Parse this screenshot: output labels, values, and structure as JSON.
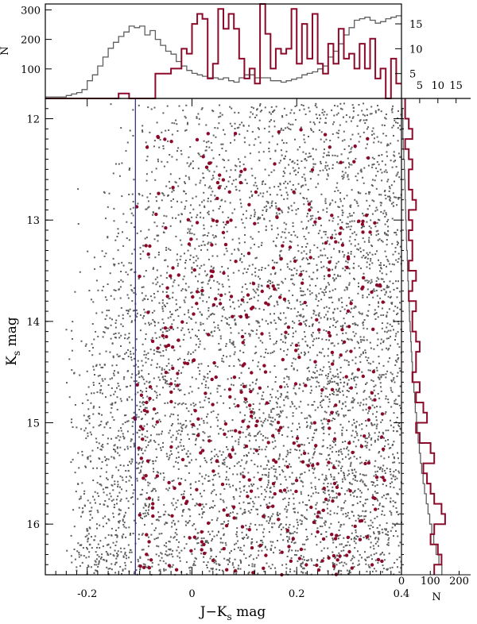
{
  "figure": {
    "colors": {
      "field": "#5e5e5e",
      "cluster": "#8b0a2a",
      "line": "#27277f",
      "frame": "#000000"
    }
  },
  "chart_data": [
    {
      "type": "scatter",
      "xlabel_main": "J−K",
      "xlabel_sub": "s",
      "xlabel_unit": " mag",
      "ylabel_main": "K",
      "ylabel_sub": "s",
      "ylabel_unit": " mag",
      "xlim": [
        -0.28,
        0.4
      ],
      "ylim": [
        16.5,
        11.8
      ],
      "xticks": [
        "-0.2",
        "0",
        "0.2",
        "0.4"
      ],
      "yticks": [
        "12",
        "13",
        "14",
        "15",
        "16"
      ],
      "grid": false,
      "vertical_line_x": -0.108,
      "series": [
        {
          "role": "field stars",
          "color": "#5e5e5e",
          "approx_count": 5200,
          "density": {
            "color_axis": [
              -0.24,
              -0.2,
              -0.15,
              -0.1,
              -0.05,
              0.0,
              0.05,
              0.1,
              0.15,
              0.2,
              0.25,
              0.3,
              0.35,
              0.4
            ],
            "mag_rows": [
              {
                "mag": 12.0,
                "rel": [
                  0.0,
                  0.0,
                  0.05,
                  0.15,
                  0.3,
                  0.4,
                  0.45,
                  0.45,
                  0.55,
                  0.6,
                  0.7,
                  0.7,
                  0.75,
                  0.7
                ]
              },
              {
                "mag": 13.0,
                "rel": [
                  0.0,
                  0.05,
                  0.2,
                  0.4,
                  0.5,
                  0.55,
                  0.55,
                  0.55,
                  0.6,
                  0.7,
                  0.8,
                  0.8,
                  0.9,
                  0.8
                ]
              },
              {
                "mag": 14.0,
                "rel": [
                  0.05,
                  0.15,
                  0.6,
                  0.8,
                  0.7,
                  0.6,
                  0.6,
                  0.6,
                  0.7,
                  0.8,
                  0.9,
                  1.0,
                  1.0,
                  0.9
                ]
              },
              {
                "mag": 15.0,
                "rel": [
                  0.1,
                  0.4,
                  1.0,
                  0.95,
                  0.8,
                  0.7,
                  0.7,
                  0.7,
                  0.8,
                  0.9,
                  1.0,
                  1.0,
                  1.0,
                  1.0
                ]
              },
              {
                "mag": 16.0,
                "rel": [
                  0.3,
                  0.9,
                  1.0,
                  1.0,
                  0.9,
                  0.85,
                  0.85,
                  0.9,
                  0.95,
                  1.0,
                  1.0,
                  1.0,
                  1.0,
                  1.0
                ]
              }
            ]
          }
        },
        {
          "role": "cluster members",
          "color": "#8b0a2a",
          "approx_count": 420,
          "x_range": [
            -0.11,
            0.37
          ],
          "y_range": [
            12.1,
            16.5
          ],
          "note_density": "uniform in color, increasing toward fainter magnitudes"
        }
      ]
    },
    {
      "type": "histogram",
      "role": "top color histogram (step)",
      "xlim": [
        -0.28,
        0.4
      ],
      "bin_edges_start": -0.28,
      "bin_width": 0.01,
      "left_axis": {
        "label": "N",
        "ticks": [
          "100",
          "200",
          "300"
        ],
        "lim": [
          0,
          320
        ]
      },
      "right_axis": {
        "ticks": [
          "5",
          "10",
          "15"
        ],
        "lim": [
          0,
          19
        ]
      },
      "series": [
        {
          "name": "field",
          "color": "#5e5e5e",
          "axis": "left",
          "values": [
            5,
            5,
            5,
            5,
            10,
            15,
            20,
            30,
            60,
            80,
            110,
            140,
            170,
            190,
            210,
            225,
            245,
            240,
            245,
            215,
            230,
            200,
            180,
            160,
            150,
            125,
            110,
            95,
            85,
            80,
            75,
            70,
            70,
            65,
            70,
            60,
            55,
            70,
            80,
            80,
            70,
            70,
            70,
            60,
            60,
            55,
            60,
            65,
            70,
            80,
            85,
            90,
            100,
            110,
            140,
            160,
            185,
            215,
            240,
            265,
            270,
            275,
            265,
            255,
            260,
            270,
            275,
            280
          ]
        },
        {
          "name": "cluster",
          "color": "#8b0a2a",
          "axis": "right",
          "values": [
            0,
            0,
            0,
            0,
            0,
            0,
            0,
            0,
            0,
            0,
            0,
            0,
            0,
            0,
            1,
            1,
            0,
            0,
            0,
            0,
            0,
            5,
            5,
            5,
            6,
            6,
            10,
            9,
            15,
            17,
            16,
            4,
            7,
            18,
            14,
            17,
            14,
            8,
            4,
            6,
            3,
            19,
            13,
            6,
            10,
            9,
            10,
            18,
            7,
            15,
            8,
            17,
            7,
            5,
            11,
            7,
            14,
            8,
            9,
            6,
            11,
            6,
            12,
            4,
            6,
            0,
            8,
            3
          ]
        }
      ]
    },
    {
      "type": "histogram",
      "role": "right magnitude histogram (step)",
      "orientation": "horizontal",
      "ylim": [
        16.5,
        11.8
      ],
      "bin_edges_start": 11.8,
      "bin_width": 0.1,
      "top_axis": {
        "ticks": [
          "5",
          "10",
          "15"
        ],
        "lim": [
          0,
          19
        ]
      },
      "bottom_axis": {
        "label": "N",
        "ticks": [
          "0",
          "100",
          "200"
        ],
        "lim": [
          0,
          240
        ]
      },
      "series": [
        {
          "name": "field",
          "color": "#5e5e5e",
          "axis": "bottom",
          "values": [
            2,
            3,
            5,
            5,
            6,
            8,
            10,
            11,
            12,
            13,
            14,
            15,
            16,
            17,
            18,
            20,
            21,
            22,
            24,
            25,
            27,
            28,
            30,
            32,
            34,
            36,
            38,
            40,
            43,
            46,
            48,
            52,
            55,
            58,
            62,
            66,
            70,
            75,
            80,
            86,
            92,
            98,
            105,
            112,
            120,
            130,
            140
          ]
        },
        {
          "name": "cluster",
          "color": "#8b0a2a",
          "axis": "top",
          "values": [
            1,
            1,
            2,
            3,
            1,
            2,
            3,
            2,
            2,
            3,
            4,
            2,
            3,
            2,
            3,
            3,
            2,
            4,
            3,
            2,
            4,
            3,
            3,
            4,
            5,
            4,
            4,
            3,
            5,
            4,
            6,
            7,
            4,
            5,
            8,
            9,
            6,
            7,
            8,
            9,
            11,
            12,
            9,
            8,
            10,
            11,
            9
          ]
        }
      ]
    }
  ]
}
